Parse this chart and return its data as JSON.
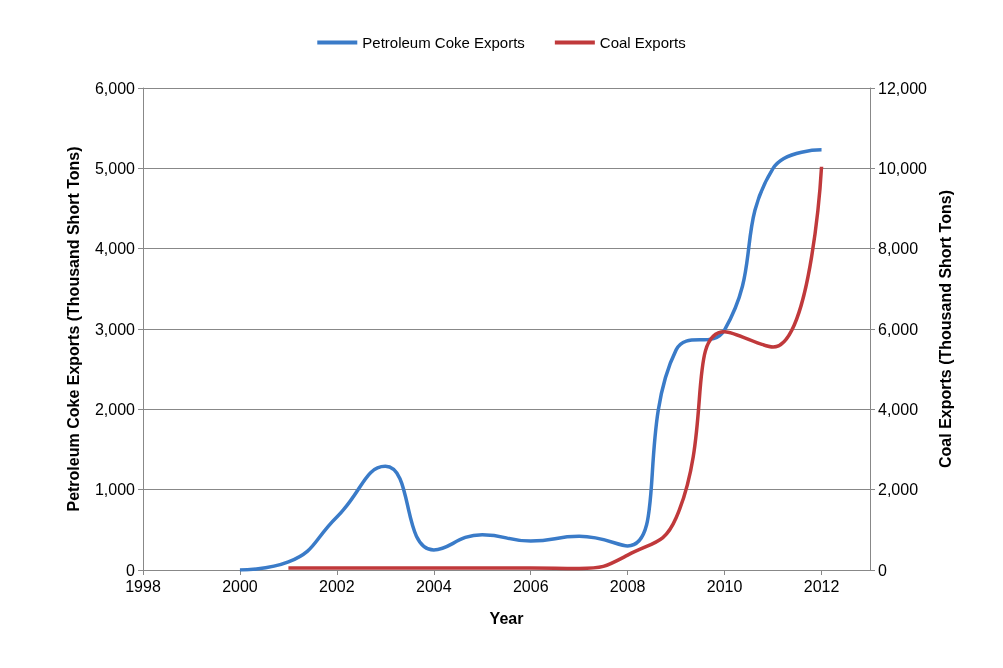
{
  "chart_data": {
    "type": "line",
    "xlabel": "Year",
    "ylabel": "Petroleum Coke Exports (Thousand Short Tons)",
    "y2label": "Coal Exports (Thousand Short Tons)",
    "xlim": [
      1998,
      2013
    ],
    "xticks": [
      1998,
      2000,
      2002,
      2004,
      2006,
      2008,
      2010,
      2012
    ],
    "ylim": [
      0,
      6000
    ],
    "yticks": [
      0,
      {
        "value": 1000,
        "label": "1,000"
      },
      {
        "value": 2000,
        "label": "2,000"
      },
      {
        "value": 3000,
        "label": "3,000"
      },
      {
        "value": 4000,
        "label": "4,000"
      },
      {
        "value": 5000,
        "label": "5,000"
      },
      {
        "value": 6000,
        "label": "6,000"
      }
    ],
    "y2lim": [
      0,
      12000
    ],
    "y2ticks": [
      0,
      {
        "value": 2000,
        "label": "2,000"
      },
      {
        "value": 4000,
        "label": "4,000"
      },
      {
        "value": 6000,
        "label": "6,000"
      },
      {
        "value": 8000,
        "label": "8,000"
      },
      {
        "value": 10000,
        "label": "10,000"
      },
      {
        "value": 12000,
        "label": "12,000"
      }
    ],
    "series": [
      {
        "name": "Petroleum Coke Exports",
        "color": "#3a7bc8",
        "x": [
          2000,
          2001,
          2002,
          2003,
          2004,
          2005,
          2006,
          2007,
          2008,
          2009,
          2010,
          2011,
          2012
        ],
        "values": [
          0,
          100,
          660,
          1290,
          250,
          440,
          360,
          420,
          300,
          2740,
          2990,
          5000,
          5230
        ]
      },
      {
        "name": "Coal Exports",
        "color": "#c0393b",
        "axis": "y2",
        "x": [
          2001,
          2002,
          2003,
          2004,
          2005,
          2006,
          2007,
          2008,
          2009,
          2010,
          2011,
          2012
        ],
        "values": [
          50,
          50,
          50,
          50,
          50,
          50,
          40,
          370,
          1300,
          5930,
          5550,
          10040
        ]
      }
    ],
    "grid": "y",
    "legend": "top",
    "marker": "none",
    "line_style": "solid"
  }
}
